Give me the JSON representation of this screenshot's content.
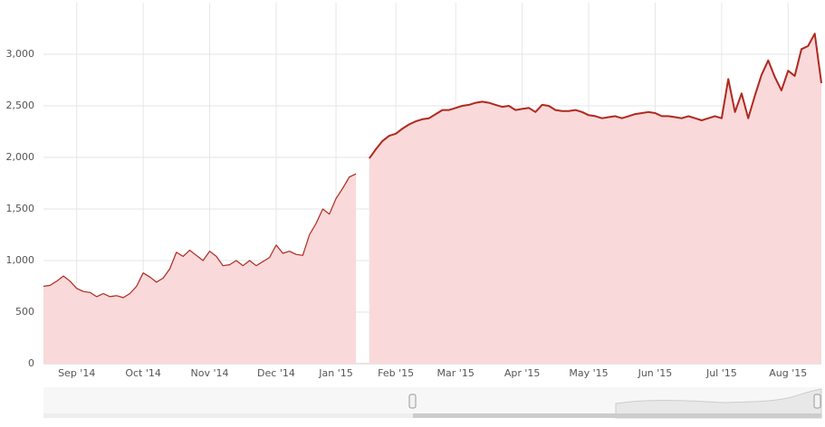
{
  "chart_data": {
    "type": "area",
    "categories": [
      null,
      null,
      null,
      null,
      null,
      "Sep '14",
      null,
      null,
      null,
      null,
      null,
      null,
      null,
      null,
      null,
      "Oct '14",
      null,
      null,
      null,
      null,
      null,
      null,
      null,
      null,
      null,
      "Nov '14",
      null,
      null,
      null,
      null,
      null,
      null,
      null,
      null,
      null,
      "Dec '14",
      null,
      null,
      null,
      null,
      null,
      null,
      null,
      null,
      "Jan '15",
      null,
      null,
      null,
      null,
      null,
      null,
      null,
      null,
      "Feb '15",
      null,
      null,
      null,
      null,
      null,
      null,
      null,
      null,
      "Mar '15",
      null,
      null,
      null,
      null,
      null,
      null,
      null,
      null,
      null,
      "Apr '15",
      null,
      null,
      null,
      null,
      null,
      null,
      null,
      null,
      null,
      "May '15",
      null,
      null,
      null,
      null,
      null,
      null,
      null,
      null,
      null,
      "Jun '15",
      null,
      null,
      null,
      null,
      null,
      null,
      null,
      null,
      null,
      "Jul '15",
      null,
      null,
      null,
      null,
      null,
      null,
      null,
      null,
      null,
      "Aug '15",
      null,
      null,
      null,
      null,
      null
    ],
    "values": [
      750,
      760,
      800,
      850,
      800,
      730,
      700,
      690,
      650,
      680,
      650,
      660,
      640,
      680,
      750,
      880,
      840,
      790,
      830,
      920,
      1080,
      1040,
      1100,
      1050,
      1000,
      1090,
      1040,
      950,
      960,
      1000,
      950,
      1000,
      950,
      990,
      1030,
      1150,
      1070,
      1090,
      1060,
      1050,
      1250,
      1360,
      1500,
      1450,
      1600,
      1700,
      1810,
      1840,
      null,
      1990,
      2080,
      2160,
      2210,
      2230,
      2280,
      2320,
      2350,
      2370,
      2380,
      2420,
      2460,
      2460,
      2480,
      2500,
      2510,
      2530,
      2540,
      2530,
      2510,
      2490,
      2500,
      2460,
      2470,
      2480,
      2440,
      2510,
      2500,
      2460,
      2450,
      2450,
      2460,
      2440,
      2410,
      2400,
      2380,
      2390,
      2400,
      2380,
      2400,
      2420,
      2430,
      2440,
      2430,
      2400,
      2400,
      2390,
      2380,
      2400,
      2380,
      2360,
      2380,
      2400,
      2380,
      2760,
      2440,
      2620,
      2380,
      2600,
      2800,
      2940,
      2780,
      2650,
      2840,
      2790,
      3050,
      3080,
      3200,
      2720
    ],
    "color": "#b0281e",
    "fill": "#f9d9da",
    "ylim": [
      0,
      3500
    ],
    "yticks": [
      0,
      500,
      {
        "value": 1000,
        "label": "1,000"
      },
      {
        "value": 1500,
        "label": "1,500"
      },
      {
        "value": 2000,
        "label": "2,000"
      },
      {
        "value": 2500,
        "label": "2,500"
      },
      {
        "value": 3000,
        "label": "3,000"
      }
    ],
    "grid": true
  }
}
